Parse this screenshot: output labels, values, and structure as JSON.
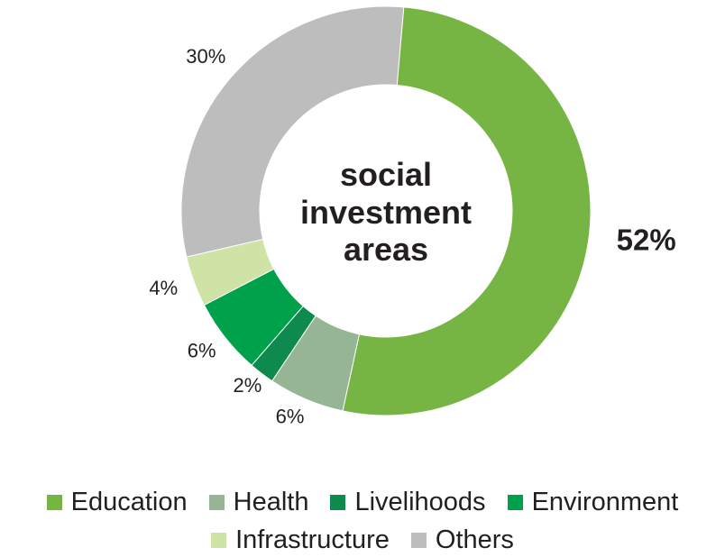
{
  "chart_data": {
    "type": "pie",
    "title": "",
    "center_label": [
      "social",
      "investment",
      "areas"
    ],
    "slices": [
      {
        "name": "Education",
        "value": 52,
        "label": "52%",
        "color": "#76b443"
      },
      {
        "name": "Health",
        "value": 6,
        "label": "6%",
        "color": "#95b595"
      },
      {
        "name": "Livelihoods",
        "value": 2,
        "label": "2%",
        "color": "#0e8a4f"
      },
      {
        "name": "Environment",
        "value": 6,
        "label": "6%",
        "color": "#00a14b"
      },
      {
        "name": "Infrastructure",
        "value": 4,
        "label": "4%",
        "color": "#cfe3a6"
      },
      {
        "name": "Others",
        "value": 30,
        "label": "30%",
        "color": "#bdbdbd"
      }
    ],
    "legend_position": "bottom"
  },
  "legend": {
    "row1": [
      {
        "label": "Education",
        "color": "#76b443"
      },
      {
        "label": "Health",
        "color": "#95b595"
      },
      {
        "label": "Livelihoods",
        "color": "#0e8a4f"
      },
      {
        "label": "Environment",
        "color": "#00a14b"
      }
    ],
    "row2": [
      {
        "label": "Infrastructure",
        "color": "#cfe3a6"
      },
      {
        "label": "Others",
        "color": "#bdbdbd"
      }
    ]
  }
}
